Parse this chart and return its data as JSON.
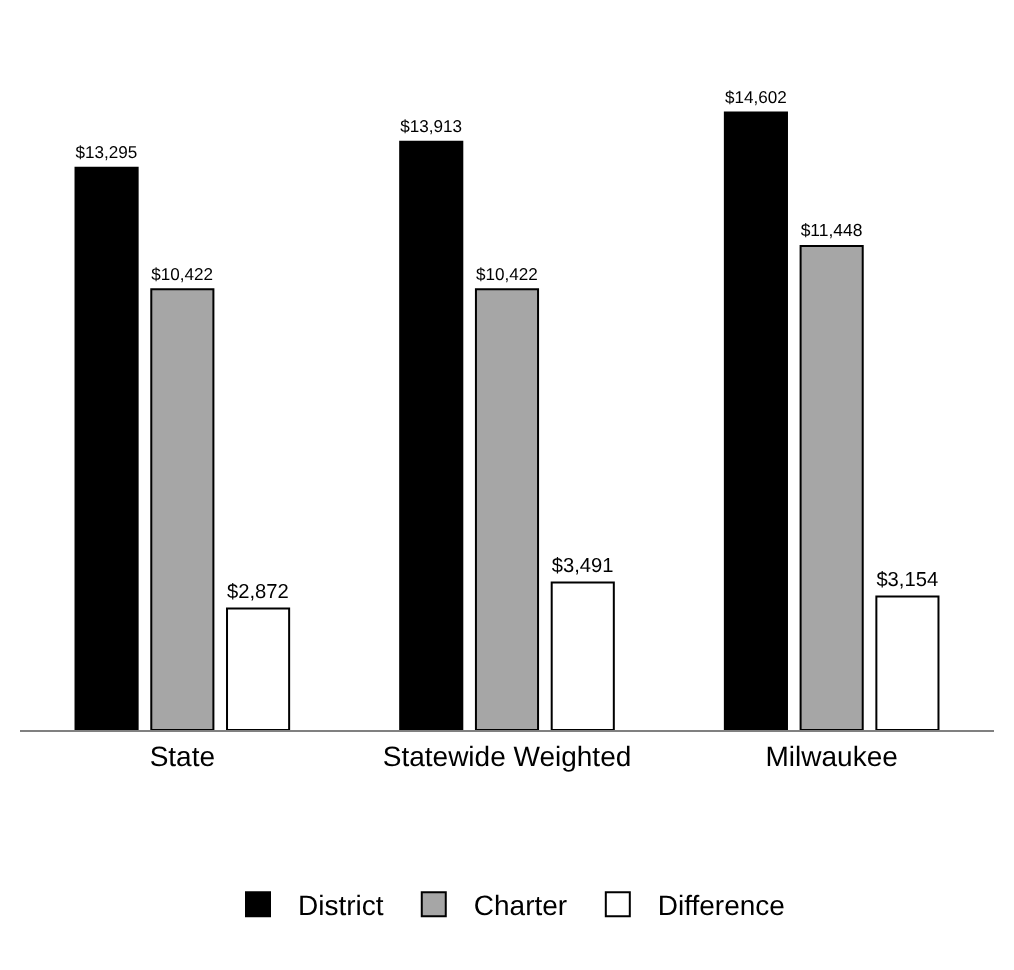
{
  "chart_data": {
    "type": "bar",
    "categories": [
      "State",
      "Statewide Weighted",
      "Milwaukee"
    ],
    "series": [
      {
        "name": "District",
        "color": "#000000",
        "values": [
          13295,
          13913,
          14602
        ],
        "value_labels": [
          "$13,295",
          "$13,913",
          "$14,602"
        ]
      },
      {
        "name": "Charter",
        "color": "#a6a6a6",
        "values": [
          10422,
          10422,
          11448
        ],
        "value_labels": [
          "$10,422",
          "$10,422",
          "$11,448"
        ]
      },
      {
        "name": "Difference",
        "color": "#ffffff",
        "values": [
          2872,
          3491,
          3154
        ],
        "value_labels": [
          "$2,872",
          "$3,491",
          "$3,154"
        ]
      }
    ],
    "legend": "bottom",
    "tick_labels": "x"
  }
}
